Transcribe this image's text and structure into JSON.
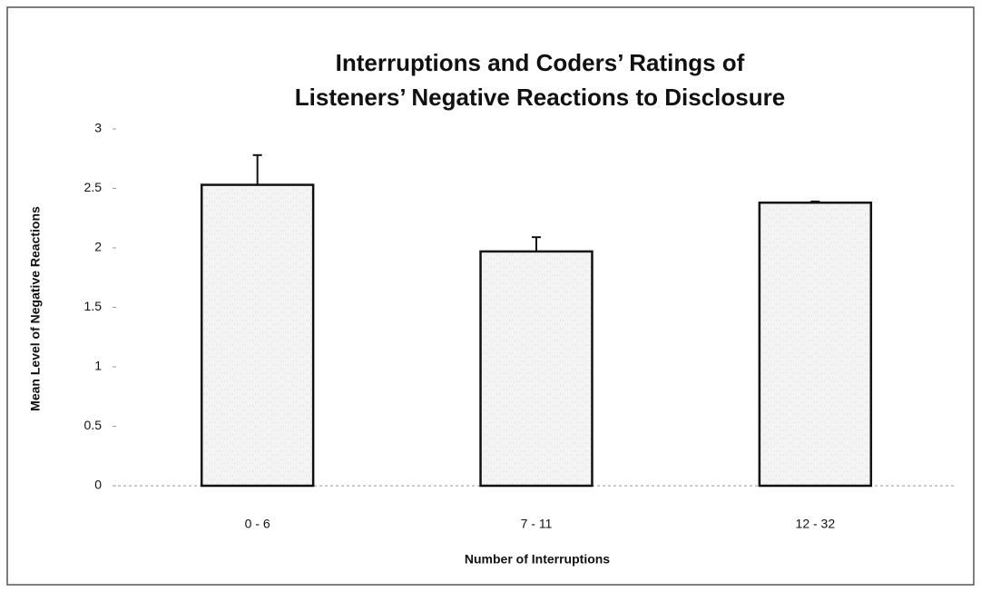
{
  "chart_data": {
    "type": "bar",
    "title": [
      "Interruptions and Coders’ Ratings of",
      "Listeners’ Negative Reactions to Disclosure"
    ],
    "xlabel": "Number of Interruptions",
    "ylabel": "Mean Level of Negative Reactions",
    "categories": [
      "0 - 6",
      "7 - 11",
      "12 - 32"
    ],
    "values": [
      2.53,
      1.97,
      2.38
    ],
    "errors": [
      0.25,
      0.12,
      0.01
    ],
    "color": "#f2f2f2",
    "ylim": [
      0,
      3
    ],
    "yticks": [
      0,
      0.5,
      1,
      1.5,
      2,
      2.5,
      3
    ],
    "grid": false
  }
}
